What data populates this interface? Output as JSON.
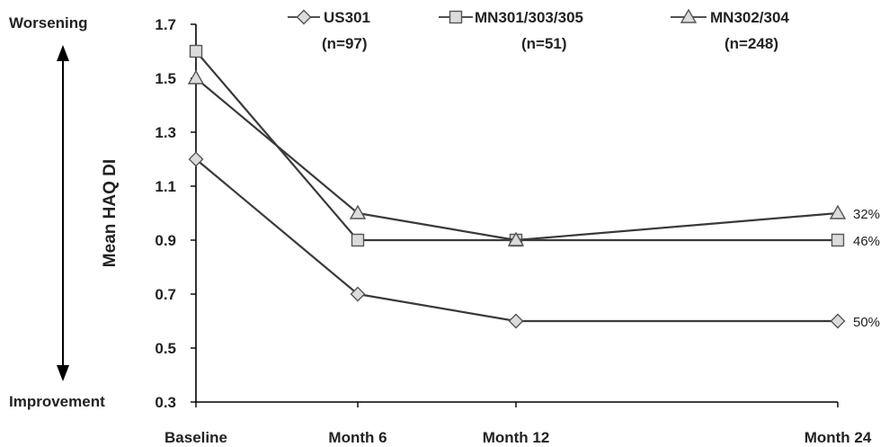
{
  "chart_data": {
    "type": "line",
    "categories": [
      "Baseline",
      "Month 6",
      "Month 12",
      "Month 24"
    ],
    "ylabel": "Mean HAQ DI",
    "ylim": [
      0.3,
      1.7
    ],
    "yticks": [
      "0.3",
      "0.5",
      "0.7",
      "0.9",
      "1.1",
      "1.3",
      "1.5",
      "1.7"
    ],
    "grid": false,
    "legend_position": "top",
    "direction_labels": {
      "top": "Worsening",
      "bottom": "Improvement"
    },
    "series": [
      {
        "name": "US301",
        "n_label": "(n=97)",
        "marker": "diamond",
        "values": [
          1.2,
          0.7,
          0.6,
          0.6
        ],
        "end_label": "50%"
      },
      {
        "name": "MN301/303/305",
        "n_label": "(n=51)",
        "marker": "square",
        "values": [
          1.6,
          0.9,
          0.9,
          0.9
        ],
        "end_label": "46%"
      },
      {
        "name": "MN302/304",
        "n_label": "(n=248)",
        "marker": "triangle",
        "values": [
          1.5,
          1.0,
          0.9,
          1.0
        ],
        "end_label": "32%"
      }
    ],
    "colors": {
      "line": "#3a3a3a",
      "marker_fill": "#dcdcdc",
      "marker_stroke": "#555555",
      "text": "#222222"
    }
  }
}
